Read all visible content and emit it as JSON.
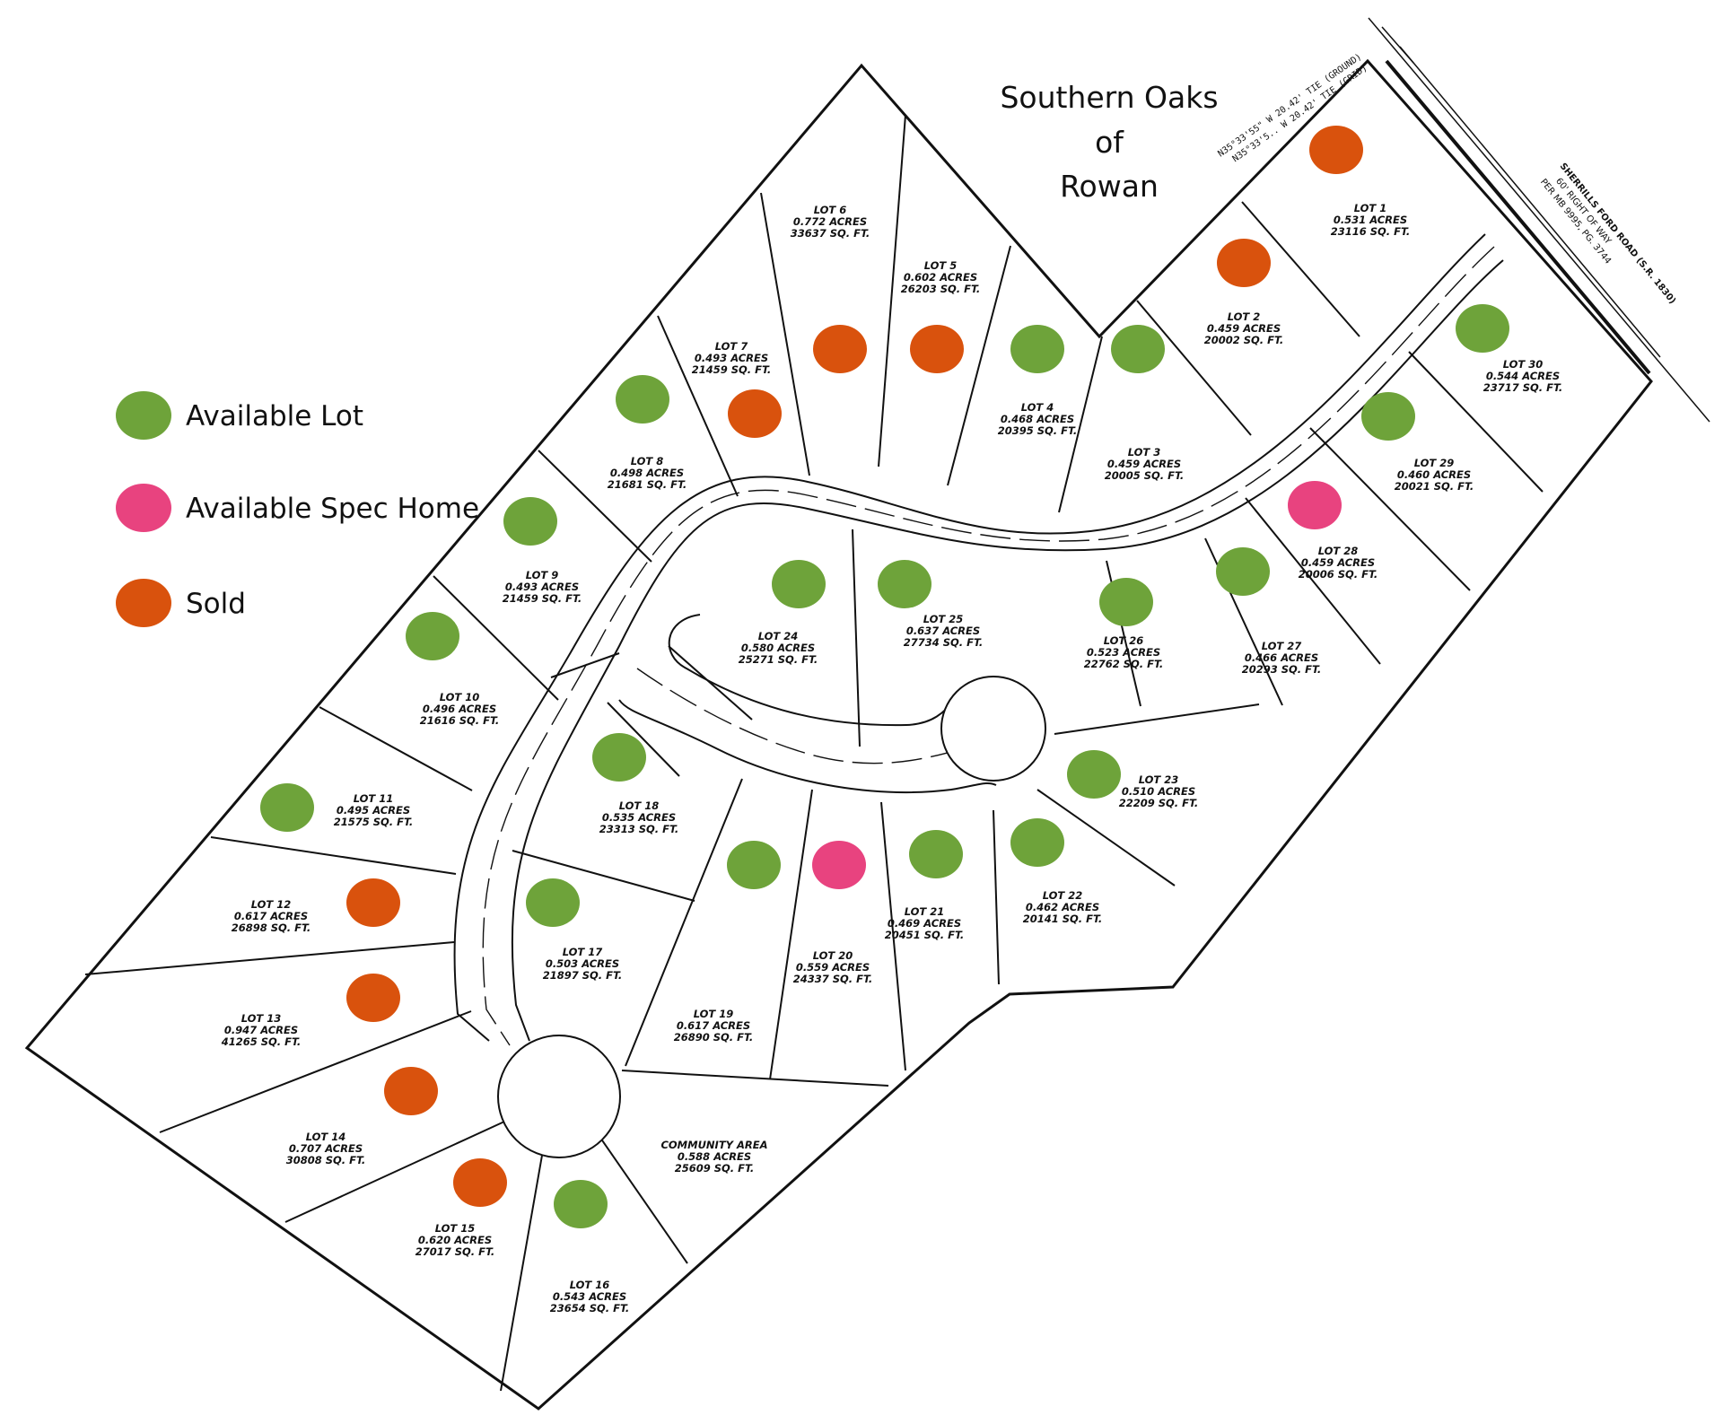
{
  "title": [
    "Southern Oaks",
    "of",
    "Rowan"
  ],
  "colors": {
    "available": "#6ea33a",
    "spec": "#e8437f",
    "sold": "#d9520d"
  },
  "legend": [
    {
      "status": "available",
      "label": "Available Lot"
    },
    {
      "status": "spec",
      "label": "Available Spec Home"
    },
    {
      "status": "sold",
      "label": "Sold"
    }
  ],
  "tie_lines": [
    "N35°33'55\" W 20.42' TIE (GROUND)",
    "N35°33'5.. W 20.42' TIE (GRID)"
  ],
  "road": {
    "name": "SHERRILLS FORD ROAD (S.R. 1830)",
    "row_line_1": "60' RIGHT OF WAY",
    "row_line_2": "PER MB 9995, PG. 3744"
  },
  "lots": [
    {
      "name": "LOT 1",
      "acres": "0.531 ACRES",
      "sqft": "23116 SQ. FT.",
      "status": "sold"
    },
    {
      "name": "LOT 2",
      "acres": "0.459 ACRES",
      "sqft": "20002 SQ. FT.",
      "status": "sold"
    },
    {
      "name": "LOT 3",
      "acres": "0.459 ACRES",
      "sqft": "20005 SQ. FT.",
      "status": "available"
    },
    {
      "name": "LOT 4",
      "acres": "0.468 ACRES",
      "sqft": "20395 SQ. FT.",
      "status": "available"
    },
    {
      "name": "LOT 5",
      "acres": "0.602 ACRES",
      "sqft": "26203 SQ. FT.",
      "status": "sold"
    },
    {
      "name": "LOT 6",
      "acres": "0.772 ACRES",
      "sqft": "33637 SQ. FT.",
      "status": "sold"
    },
    {
      "name": "LOT 7",
      "acres": "0.493 ACRES",
      "sqft": "21459 SQ. FT.",
      "status": "sold"
    },
    {
      "name": "LOT 8",
      "acres": "0.498 ACRES",
      "sqft": "21681 SQ. FT.",
      "status": "available"
    },
    {
      "name": "LOT 9",
      "acres": "0.493 ACRES",
      "sqft": "21459 SQ. FT.",
      "status": "available"
    },
    {
      "name": "LOT 10",
      "acres": "0.496 ACRES",
      "sqft": "21616 SQ. FT.",
      "status": "available"
    },
    {
      "name": "LOT 11",
      "acres": "0.495 ACRES",
      "sqft": "21575 SQ. FT.",
      "status": "available"
    },
    {
      "name": "LOT 12",
      "acres": "0.617 ACRES",
      "sqft": "26898 SQ. FT.",
      "status": "sold"
    },
    {
      "name": "LOT 13",
      "acres": "0.947 ACRES",
      "sqft": "41265 SQ. FT.",
      "status": "sold"
    },
    {
      "name": "LOT 14",
      "acres": "0.707 ACRES",
      "sqft": "30808 SQ. FT.",
      "status": "sold"
    },
    {
      "name": "LOT 15",
      "acres": "0.620 ACRES",
      "sqft": "27017 SQ. FT.",
      "status": "sold"
    },
    {
      "name": "LOT 16",
      "acres": "0.543 ACRES",
      "sqft": "23654 SQ. FT.",
      "status": "available"
    },
    {
      "name": "LOT 17",
      "acres": "0.503 ACRES",
      "sqft": "21897 SQ. FT.",
      "status": "available"
    },
    {
      "name": "LOT 18",
      "acres": "0.535 ACRES",
      "sqft": "23313 SQ. FT.",
      "status": "available"
    },
    {
      "name": "LOT 19",
      "acres": "0.617 ACRES",
      "sqft": "26890 SQ. FT.",
      "status": "available"
    },
    {
      "name": "LOT 20",
      "acres": "0.559 ACRES",
      "sqft": "24337 SQ. FT.",
      "status": "spec"
    },
    {
      "name": "LOT 21",
      "acres": "0.469 ACRES",
      "sqft": "20451 SQ. FT.",
      "status": "available"
    },
    {
      "name": "LOT 22",
      "acres": "0.462 ACRES",
      "sqft": "20141 SQ. FT.",
      "status": "available"
    },
    {
      "name": "LOT 23",
      "acres": "0.510 ACRES",
      "sqft": "22209 SQ. FT.",
      "status": "available"
    },
    {
      "name": "LOT 24",
      "acres": "0.580 ACRES",
      "sqft": "25271 SQ. FT.",
      "status": "available"
    },
    {
      "name": "LOT 25",
      "acres": "0.637 ACRES",
      "sqft": "27734 SQ. FT.",
      "status": "available"
    },
    {
      "name": "LOT 26",
      "acres": "0.523 ACRES",
      "sqft": "22762 SQ. FT.",
      "status": "available"
    },
    {
      "name": "LOT 27",
      "acres": "0.466 ACRES",
      "sqft": "20293 SQ. FT.",
      "status": "available"
    },
    {
      "name": "LOT 28",
      "acres": "0.459 ACRES",
      "sqft": "20006 SQ. FT.",
      "status": "spec"
    },
    {
      "name": "LOT 29",
      "acres": "0.460 ACRES",
      "sqft": "20021 SQ. FT.",
      "status": "available"
    },
    {
      "name": "LOT 30",
      "acres": "0.544 ACRES",
      "sqft": "23717 SQ. FT.",
      "status": "available"
    },
    {
      "name": "COMMUNITY AREA",
      "acres": "0.588 ACRES",
      "sqft": "25609 SQ. FT.",
      "status": "none"
    }
  ]
}
